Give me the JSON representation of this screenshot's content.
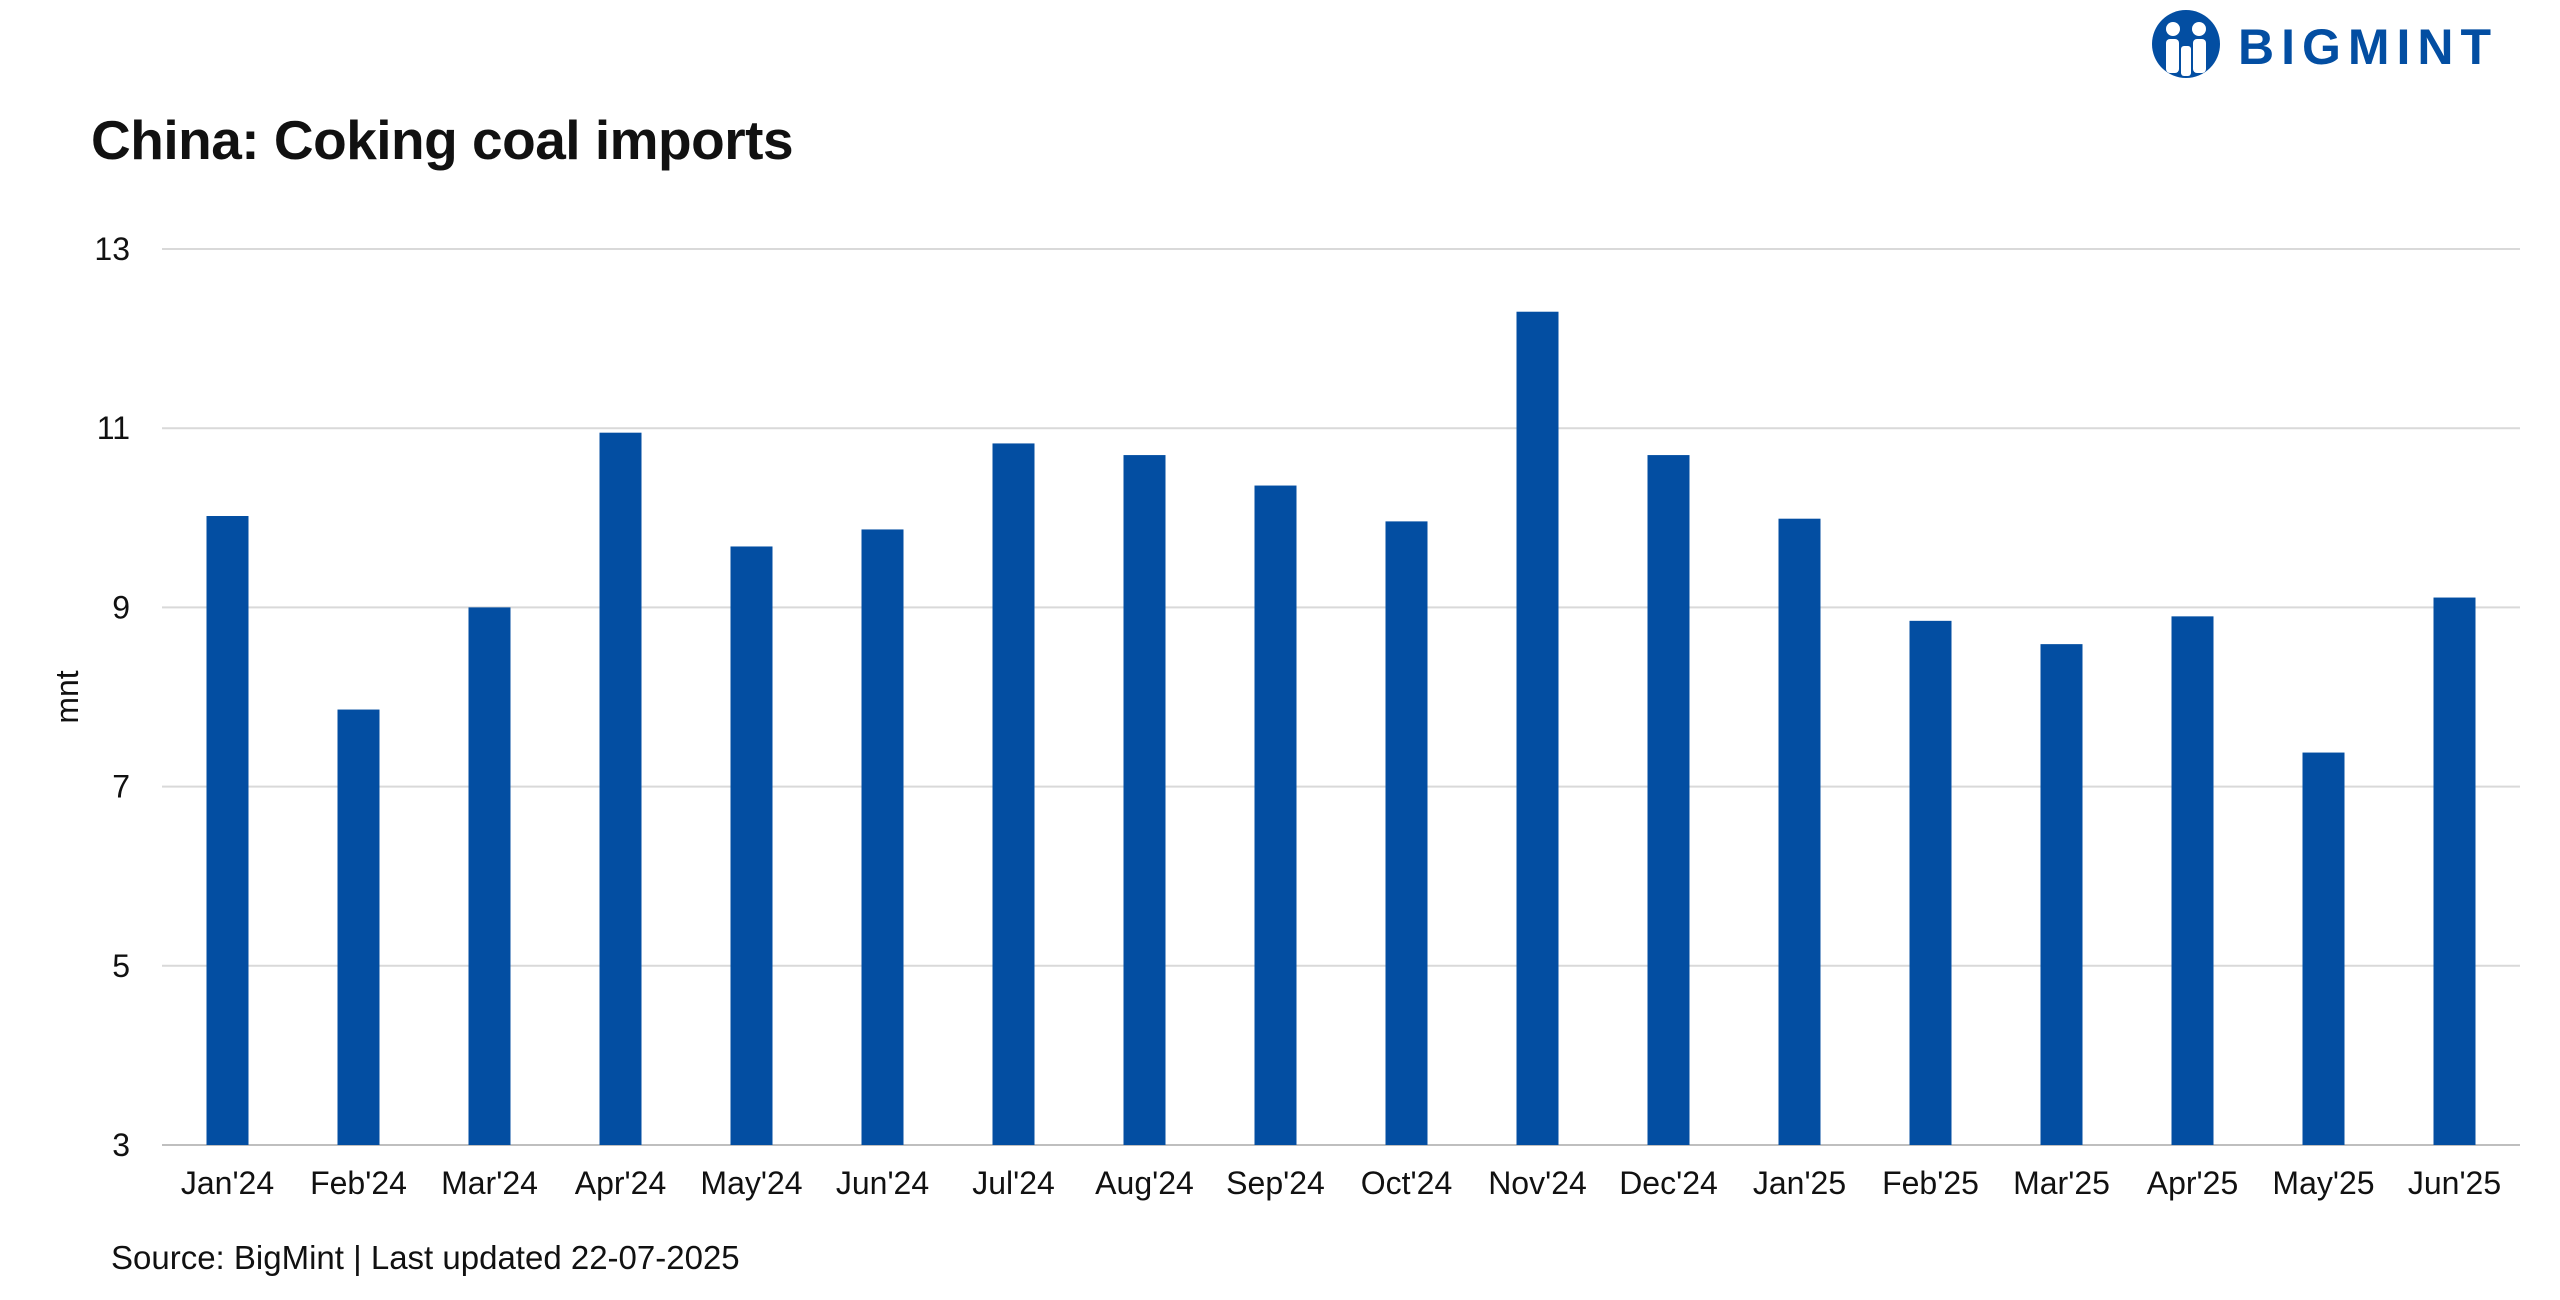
{
  "logo": {
    "text": "BIGMINT",
    "color": "#034ea2"
  },
  "title": "China: Coking coal imports",
  "source": "Source: BigMint | Last updated 22-07-2025",
  "chart_data": {
    "type": "bar",
    "title": "China: Coking coal imports",
    "xlabel": "",
    "ylabel": "mnt",
    "ylim": [
      3,
      13
    ],
    "yticks": [
      3,
      5,
      7,
      9,
      11,
      13
    ],
    "grid": true,
    "bar_color": "#034ea2",
    "categories": [
      "Jan'24",
      "Feb'24",
      "Mar'24",
      "Apr'24",
      "May'24",
      "Jun'24",
      "Jul'24",
      "Aug'24",
      "Sep'24",
      "Oct'24",
      "Nov'24",
      "Dec'24",
      "Jan'25",
      "Feb'25",
      "Mar'25",
      "Apr'25",
      "May'25",
      "Jun'25"
    ],
    "values": [
      10.02,
      7.86,
      9.0,
      10.95,
      9.68,
      9.87,
      10.83,
      10.7,
      10.36,
      9.96,
      12.3,
      10.7,
      9.99,
      8.85,
      8.59,
      8.9,
      7.38,
      9.11
    ]
  }
}
